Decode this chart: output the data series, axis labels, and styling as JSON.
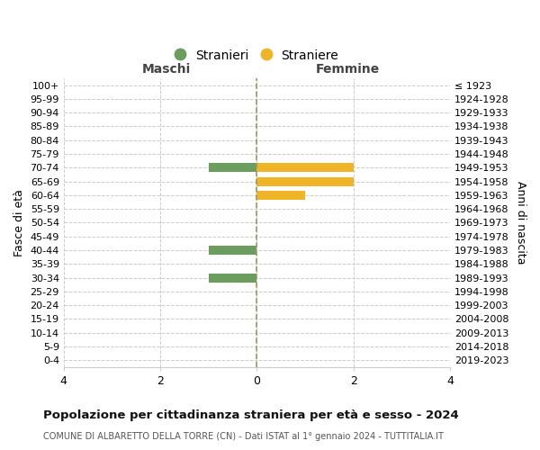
{
  "age_groups": [
    "100+",
    "95-99",
    "90-94",
    "85-89",
    "80-84",
    "75-79",
    "70-74",
    "65-69",
    "60-64",
    "55-59",
    "50-54",
    "45-49",
    "40-44",
    "35-39",
    "30-34",
    "25-29",
    "20-24",
    "15-19",
    "10-14",
    "5-9",
    "0-4"
  ],
  "birth_years": [
    "≤ 1923",
    "1924-1928",
    "1929-1933",
    "1934-1938",
    "1939-1943",
    "1944-1948",
    "1949-1953",
    "1954-1958",
    "1959-1963",
    "1964-1968",
    "1969-1973",
    "1974-1978",
    "1979-1983",
    "1984-1988",
    "1989-1993",
    "1994-1998",
    "1999-2003",
    "2004-2008",
    "2009-2013",
    "2014-2018",
    "2019-2023"
  ],
  "males": [
    0,
    0,
    0,
    0,
    0,
    0,
    1,
    0,
    0,
    0,
    0,
    0,
    1,
    0,
    1,
    0,
    0,
    0,
    0,
    0,
    0
  ],
  "females": [
    0,
    0,
    0,
    0,
    0,
    0,
    2,
    2,
    1,
    0,
    0,
    0,
    0,
    0,
    0,
    0,
    0,
    0,
    0,
    0,
    0
  ],
  "male_color": "#6b9e5e",
  "female_color": "#f0b429",
  "xlim": [
    -4,
    4
  ],
  "xticks": [
    -4,
    -2,
    0,
    2,
    4
  ],
  "title": "Popolazione per cittadinanza straniera per età e sesso - 2024",
  "subtitle": "COMUNE DI ALBARETTO DELLA TORRE (CN) - Dati ISTAT al 1° gennaio 2024 - TUTTITALIA.IT",
  "ylabel_left": "Fasce di età",
  "ylabel_right": "Anni di nascita",
  "legend_stranieri": "Stranieri",
  "legend_straniere": "Straniere",
  "maschi_label": "Maschi",
  "femmine_label": "Femmine",
  "bg_color": "#ffffff",
  "grid_color": "#cccccc"
}
